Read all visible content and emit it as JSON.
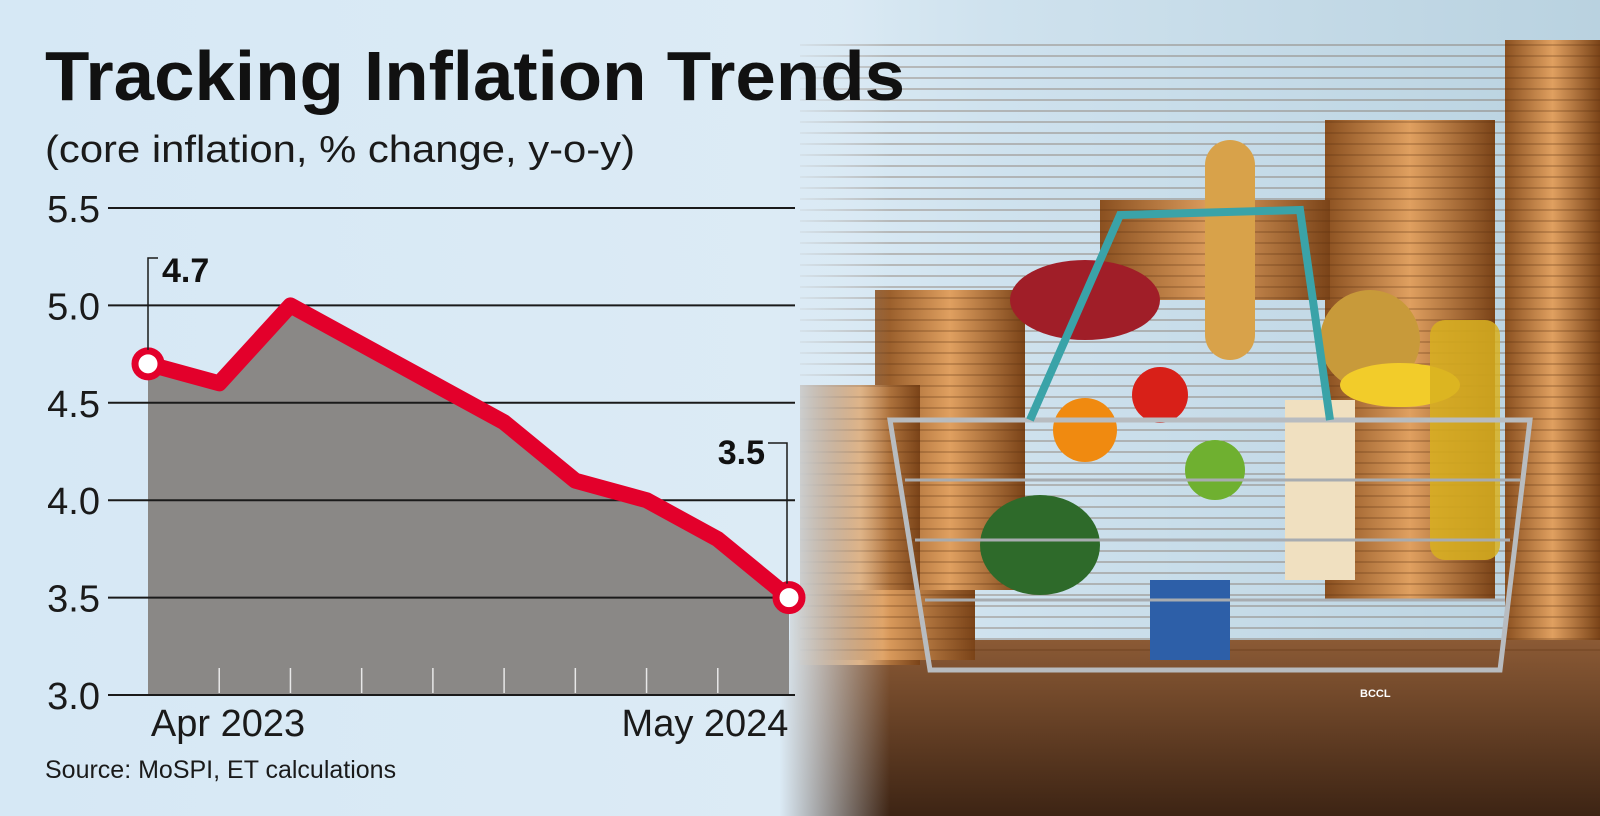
{
  "chart_data": {
    "type": "area",
    "title": "Tracking Inflation Trends",
    "subtitle": "(core inflation, % change, y-o-y)",
    "x_labels": [
      "Apr 2023",
      "May 2024"
    ],
    "values": [
      4.7,
      4.6,
      5.0,
      4.8,
      4.6,
      4.4,
      4.1,
      4.0,
      3.8,
      3.5
    ],
    "ylim": [
      3.0,
      5.5
    ],
    "yticks": [
      "3.0",
      "3.5",
      "4.0",
      "4.5",
      "5.0",
      "5.5"
    ],
    "annotations": {
      "start": "4.7",
      "end": "3.5"
    },
    "grid": true,
    "source": "Source: MoSPI, ET calculations",
    "colors": {
      "line": "#e3002b",
      "area": "#8a8886",
      "background": "#dbeaf5"
    }
  },
  "photo": {
    "credit": "BCCL"
  }
}
